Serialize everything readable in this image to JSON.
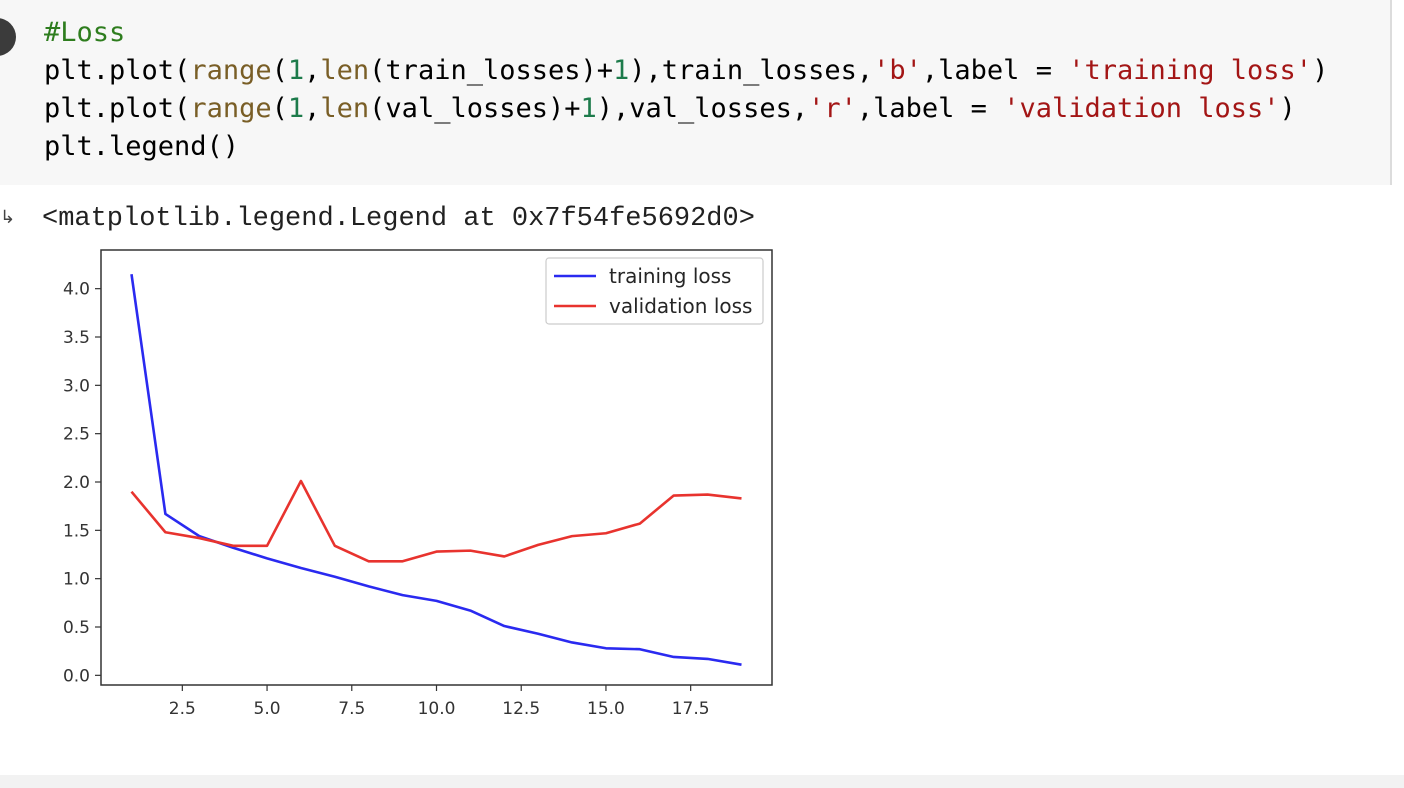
{
  "cell": {
    "code_lines": [
      [
        {
          "c": "t-comment",
          "t": "#Loss"
        }
      ],
      [
        {
          "c": "t-plain",
          "t": "plt.plot("
        },
        {
          "c": "t-builtin",
          "t": "range"
        },
        {
          "c": "t-plain",
          "t": "("
        },
        {
          "c": "t-num",
          "t": "1"
        },
        {
          "c": "t-plain",
          "t": ","
        },
        {
          "c": "t-builtin",
          "t": "len"
        },
        {
          "c": "t-plain",
          "t": "(train_losses)+"
        },
        {
          "c": "t-num",
          "t": "1"
        },
        {
          "c": "t-plain",
          "t": "),train_losses,"
        },
        {
          "c": "t-str",
          "t": "'b'"
        },
        {
          "c": "t-plain",
          "t": ",label = "
        },
        {
          "c": "t-str",
          "t": "'training loss'"
        },
        {
          "c": "t-plain",
          "t": ")"
        }
      ],
      [
        {
          "c": "t-plain",
          "t": "plt.plot("
        },
        {
          "c": "t-builtin",
          "t": "range"
        },
        {
          "c": "t-plain",
          "t": "("
        },
        {
          "c": "t-num",
          "t": "1"
        },
        {
          "c": "t-plain",
          "t": ","
        },
        {
          "c": "t-builtin",
          "t": "len"
        },
        {
          "c": "t-plain",
          "t": "(val_losses)+"
        },
        {
          "c": "t-num",
          "t": "1"
        },
        {
          "c": "t-plain",
          "t": "),val_losses,"
        },
        {
          "c": "t-str",
          "t": "'r'"
        },
        {
          "c": "t-plain",
          "t": ",label = "
        },
        {
          "c": "t-str",
          "t": "'validation loss'"
        },
        {
          "c": "t-plain",
          "t": ")"
        }
      ],
      [
        {
          "c": "t-plain",
          "t": "plt.legend()"
        }
      ]
    ]
  },
  "output": {
    "arrow": "↳",
    "text": "<matplotlib.legend.Legend at 0x7f54fe5692d0>"
  },
  "chart_data": {
    "type": "line",
    "title": "",
    "xlabel": "",
    "ylabel": "",
    "xlim": [
      0.1,
      19.9
    ],
    "ylim": [
      -0.1,
      4.4
    ],
    "x_ticks": [
      2.5,
      5.0,
      7.5,
      10.0,
      12.5,
      15.0,
      17.5
    ],
    "x_tick_labels": [
      "2.5",
      "5.0",
      "7.5",
      "10.0",
      "12.5",
      "15.0",
      "17.5"
    ],
    "y_ticks": [
      0.0,
      0.5,
      1.0,
      1.5,
      2.0,
      2.5,
      3.0,
      3.5,
      4.0
    ],
    "y_tick_labels": [
      "0.0",
      "0.5",
      "1.0",
      "1.5",
      "2.0",
      "2.5",
      "3.0",
      "3.5",
      "4.0"
    ],
    "grid": false,
    "legend_position": "upper-right",
    "x": [
      1,
      2,
      3,
      4,
      5,
      6,
      7,
      8,
      9,
      10,
      11,
      12,
      13,
      14,
      15,
      16,
      17,
      18,
      19
    ],
    "series": [
      {
        "name": "training loss",
        "color": "#2a2af0",
        "values": [
          4.15,
          1.67,
          1.44,
          1.32,
          1.21,
          1.11,
          1.02,
          0.92,
          0.83,
          0.77,
          0.67,
          0.51,
          0.43,
          0.34,
          0.28,
          0.27,
          0.19,
          0.17,
          0.11
        ]
      },
      {
        "name": "validation loss",
        "color": "#e8332e",
        "values": [
          1.9,
          1.48,
          1.42,
          1.34,
          1.34,
          2.01,
          1.34,
          1.18,
          1.18,
          1.28,
          1.29,
          1.23,
          1.35,
          1.44,
          1.47,
          1.57,
          1.86,
          1.87,
          1.83
        ]
      }
    ]
  }
}
